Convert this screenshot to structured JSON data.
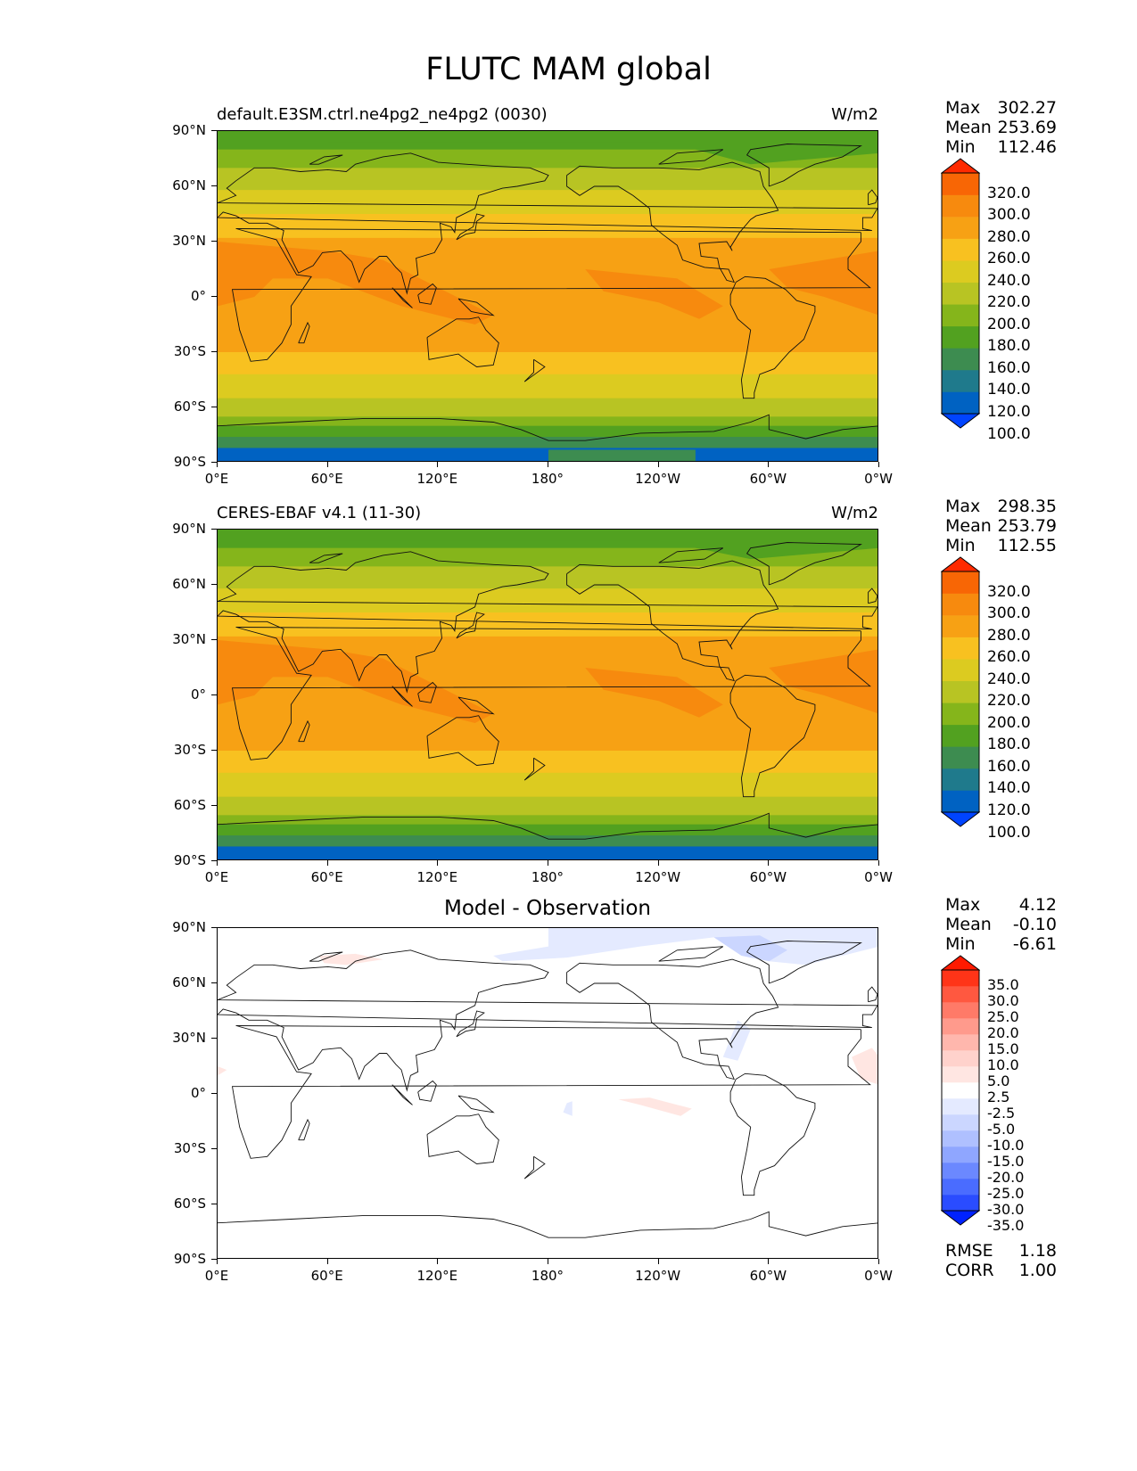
{
  "suptitle": "FLUTC MAM global",
  "axes": {
    "lat_ticks": [
      "90°N",
      "60°N",
      "30°N",
      "0°",
      "30°S",
      "60°S",
      "90°S"
    ],
    "lon_ticks": [
      "0°E",
      "60°E",
      "120°E",
      "180°",
      "120°W",
      "60°W",
      "0°W"
    ]
  },
  "panels": [
    {
      "left_title": "default.E3SM.ctrl.ne4pg2_ne4pg2 (0030)",
      "right_title": "W/m2",
      "center_title": "",
      "stats": [
        {
          "label": "Max",
          "value": "302.27"
        },
        {
          "label": "Mean",
          "value": "253.69"
        },
        {
          "label": "Min",
          "value": "112.46"
        }
      ],
      "colorbar_labels": [
        "320.0",
        "300.0",
        "280.0",
        "260.0",
        "240.0",
        "220.0",
        "200.0",
        "180.0",
        "160.0",
        "140.0",
        "120.0",
        "100.0"
      ]
    },
    {
      "left_title": "CERES-EBAF v4.1 (11-30)",
      "right_title": "W/m2",
      "center_title": "",
      "stats": [
        {
          "label": "Max",
          "value": "298.35"
        },
        {
          "label": "Mean",
          "value": "253.79"
        },
        {
          "label": "Min",
          "value": "112.55"
        }
      ],
      "colorbar_labels": [
        "320.0",
        "300.0",
        "280.0",
        "260.0",
        "240.0",
        "220.0",
        "200.0",
        "180.0",
        "160.0",
        "140.0",
        "120.0",
        "100.0"
      ]
    },
    {
      "left_title": "",
      "right_title": "",
      "center_title": "Model - Observation",
      "stats": [
        {
          "label": "Max",
          "value": "4.12"
        },
        {
          "label": "Mean",
          "value": "-0.10"
        },
        {
          "label": "Min",
          "value": "-6.61"
        }
      ],
      "colorbar_labels": [
        "35.0",
        "30.0",
        "25.0",
        "20.0",
        "15.0",
        "10.0",
        "5.0",
        "2.5",
        "-2.5",
        "-5.0",
        "-10.0",
        "-15.0",
        "-20.0",
        "-25.0",
        "-30.0",
        "-35.0"
      ],
      "extra_stats": [
        {
          "label": "RMSE",
          "value": "1.18"
        },
        {
          "label": "CORR",
          "value": "1.00"
        }
      ]
    }
  ],
  "colors": {
    "abs_bins": [
      "#0044ff",
      "#0062c2",
      "#1f7a8c",
      "#3d8c50",
      "#52a120",
      "#85b51b",
      "#b8c423",
      "#dccb20",
      "#f8c120",
      "#f7a114",
      "#f78a0e",
      "#f86605",
      "#ff2a00"
    ],
    "diff_bins": [
      "#0022ff",
      "#2a4cff",
      "#4a6cff",
      "#6b88ff",
      "#8fa6ff",
      "#afc0ff",
      "#cbd6ff",
      "#e4eaff",
      "#ffffff",
      "#ffe6e2",
      "#ffd2cc",
      "#ffb7ad",
      "#ff9a8c",
      "#ff7a68",
      "#ff5840",
      "#ff3418",
      "#ff1a00"
    ]
  }
}
